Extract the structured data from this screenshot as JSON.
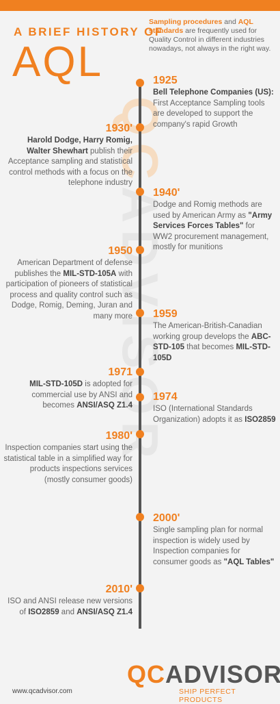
{
  "header": {
    "subtitle": "A BRIEF HISTORY OF",
    "title": "AQL",
    "intro": {
      "hl1": "Sampling procedures",
      "t1": " and ",
      "hl2": "AQL standards",
      "t2": " are frequently used for Quality Control in different industries nowadays, not always in the right way."
    }
  },
  "watermark": {
    "part1": "QC",
    "part2": "ADVISOR"
  },
  "timeline": [
    {
      "year": "1925",
      "parts": [
        {
          "b": "Bell Telephone Companies (US):"
        },
        {
          "t": " First Acceptance Sampling tools are developed to support the company's rapid Growth"
        }
      ]
    },
    {
      "year": "1930'",
      "parts": [
        {
          "b": "Harold Dodge, Harry Romig, Walter Shewhart"
        },
        {
          "t": " publish their Acceptance sampling and statistical control methods with a focus on the telephone industry"
        }
      ]
    },
    {
      "year": "1940'",
      "parts": [
        {
          "t": "Dodge and Romig methods are used by American Army as "
        },
        {
          "b": "\"Army Services Forces Tables\""
        },
        {
          "t": " for WW2 procurement management, mostly for munitions"
        }
      ]
    },
    {
      "year": "1950",
      "parts": [
        {
          "t": "American Department of defense publishes the "
        },
        {
          "b": "MIL-STD-105A"
        },
        {
          "t": " with participation of pioneers of statistical process and quality control such as Dodge, Romig, Deming, Juran and many more"
        }
      ]
    },
    {
      "year": "1959",
      "parts": [
        {
          "t": "The American-British-Canadian working group develops the "
        },
        {
          "b": "ABC-STD-105"
        },
        {
          "t": " that becomes "
        },
        {
          "b": "MIL-STD-105D"
        }
      ]
    },
    {
      "year": "1971",
      "parts": [
        {
          "b": "MIL-STD-105D"
        },
        {
          "t": " is adopted for commercial use by ANSI and becomes "
        },
        {
          "b": "ANSI/ASQ Z1.4"
        }
      ]
    },
    {
      "year": "1974",
      "parts": [
        {
          "t": "ISO (International Standards Organization) adopts it as "
        },
        {
          "b": "ISO2859"
        }
      ]
    },
    {
      "year": "1980'",
      "parts": [
        {
          "t": "Inspection companies start using the statistical table in a  simplified way for products inspections services (mostly consumer goods)"
        }
      ]
    },
    {
      "year": "2000'",
      "parts": [
        {
          "t": "Single sampling plan for normal inspection is widely used by Inspection companies for consumer goods as "
        },
        {
          "b": "\"AQL Tables\""
        }
      ]
    },
    {
      "year": "2010'",
      "parts": [
        {
          "t": "ISO and ANSI release new versions of "
        },
        {
          "b": "ISO2859"
        },
        {
          "t": " and "
        },
        {
          "b": "ANSI/ASQ Z1.4"
        }
      ]
    }
  ],
  "footer": {
    "url": "www.qcadvisor.com",
    "logo_qc": "QC",
    "logo_advisor": "ADVISOR",
    "tagline": "SHIP PERFECT PRODUCTS"
  },
  "colors": {
    "accent": "#f08020",
    "text": "#555555",
    "background": "#f3f3f3"
  }
}
